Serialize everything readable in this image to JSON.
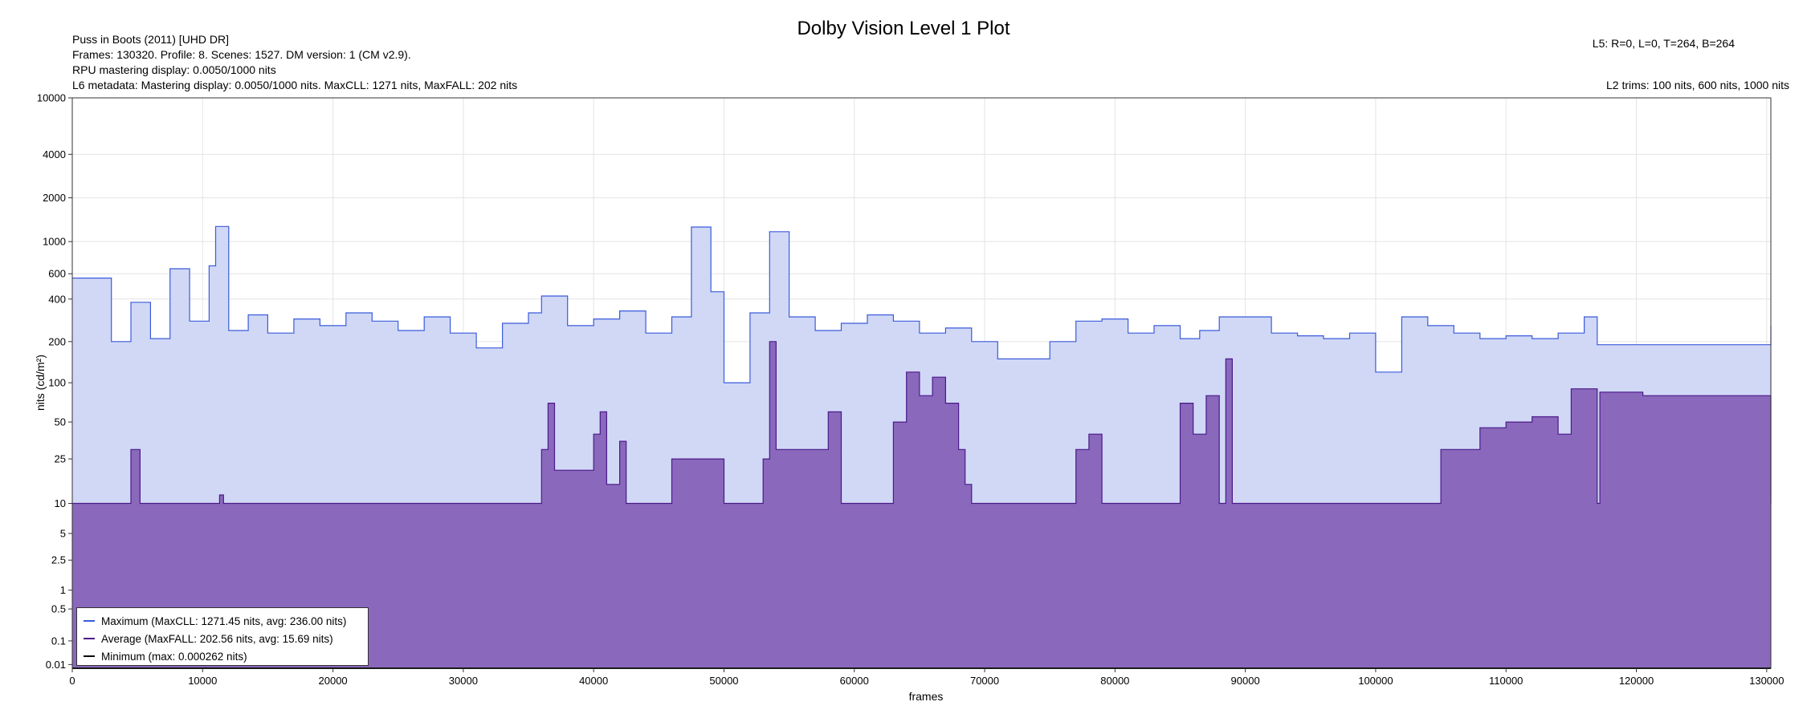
{
  "title": "Dolby Vision Level 1 Plot",
  "info_left": [
    "Puss in Boots (2011) [UHD DR]",
    "Frames: 130320. Profile: 8. Scenes: 1527. DM version: 1 (CM v2.9).",
    "RPU mastering display: 0.0050/1000 nits",
    "L6 metadata: Mastering display: 0.0050/1000 nits. MaxCLL: 1271 nits, MaxFALL: 202 nits"
  ],
  "info_right_top": "L5: R=0, L=0, T=264, B=264",
  "info_right_bottom": "L2 trims: 100 nits, 600 nits, 1000 nits",
  "colors": {
    "max_line": "#3b5bdb",
    "max_fill": "#d0d8f6",
    "avg_line": "#4b1a8a",
    "avg_fill": "#8a68bb",
    "min_line": "#000000",
    "grid": "#e4e4e4"
  },
  "chart_data": {
    "type": "area",
    "title": "Dolby Vision Level 1 Plot",
    "xlabel": "frames",
    "ylabel": "nits (cd/m²)",
    "xlim": [
      0,
      130320
    ],
    "ylim": [
      0.005,
      10000
    ],
    "y_scale": "pq",
    "x_ticks": [
      0,
      10000,
      20000,
      30000,
      40000,
      50000,
      60000,
      70000,
      80000,
      90000,
      100000,
      110000,
      120000,
      130000
    ],
    "y_ticks": [
      0.01,
      0.1,
      0.5,
      1,
      2.5,
      5,
      10,
      25,
      50,
      100,
      200,
      400,
      600,
      1000,
      2000,
      4000,
      10000
    ],
    "grid": true,
    "legend_position": "bottom-left",
    "series": [
      {
        "name": "Maximum (MaxCLL: 1271.45 nits, avg: 236.00 nits)",
        "x": [
          0,
          1500,
          3000,
          4500,
          6000,
          7500,
          9000,
          10500,
          11000,
          12000,
          13500,
          15000,
          17000,
          19000,
          21000,
          23000,
          25000,
          27000,
          29000,
          31000,
          33000,
          35000,
          36000,
          38000,
          40000,
          42000,
          44000,
          46000,
          47500,
          49000,
          50000,
          52000,
          53500,
          55000,
          57000,
          59000,
          61000,
          63000,
          65000,
          67000,
          69000,
          71000,
          73000,
          75000,
          77000,
          79000,
          81000,
          83000,
          85000,
          86500,
          88000,
          90000,
          92000,
          94000,
          96000,
          98000,
          100000,
          102000,
          104000,
          106000,
          108000,
          110000,
          112000,
          114000,
          116000,
          117000,
          118000,
          121000,
          125000,
          130000,
          130320
        ],
        "values": [
          560,
          560,
          200,
          380,
          210,
          650,
          280,
          680,
          1270,
          240,
          310,
          230,
          290,
          260,
          320,
          280,
          240,
          300,
          230,
          180,
          270,
          320,
          420,
          260,
          290,
          330,
          230,
          300,
          1260,
          450,
          100,
          320,
          1170,
          300,
          240,
          270,
          310,
          280,
          230,
          250,
          200,
          150,
          150,
          200,
          280,
          290,
          230,
          260,
          210,
          240,
          300,
          300,
          230,
          220,
          210,
          230,
          120,
          300,
          260,
          230,
          210,
          220,
          210,
          230,
          300,
          190,
          190,
          190,
          190,
          190,
          260
        ]
      },
      {
        "name": "Average (MaxFALL: 202.56 nits, avg: 15.69 nits)",
        "x": [
          0,
          4300,
          4500,
          5000,
          5200,
          11000,
          11300,
          11600,
          22000,
          32000,
          36000,
          36500,
          37000,
          40000,
          40500,
          41000,
          42000,
          42500,
          46000,
          50000,
          53000,
          53500,
          54000,
          58000,
          59000,
          63000,
          64000,
          65000,
          66000,
          67000,
          68000,
          68500,
          69000,
          76000,
          77000,
          78000,
          79000,
          84000,
          85000,
          86000,
          87000,
          88000,
          88500,
          89000,
          100000,
          105000,
          108000,
          110000,
          112000,
          114000,
          115000,
          117000,
          117200,
          120000,
          120500,
          130000,
          130320
        ],
        "values": [
          10,
          10,
          30,
          30,
          10,
          10,
          12,
          10,
          10,
          10,
          30,
          70,
          20,
          40,
          60,
          15,
          35,
          10,
          25,
          10,
          25,
          200,
          30,
          60,
          10,
          50,
          120,
          80,
          110,
          70,
          30,
          15,
          10,
          10,
          30,
          40,
          10,
          10,
          70,
          40,
          80,
          10,
          150,
          10,
          10,
          30,
          45,
          50,
          55,
          40,
          90,
          10,
          85,
          85,
          80,
          80,
          10
        ]
      },
      {
        "name": "Minimum (max: 0.000262 nits)",
        "x": [
          0,
          130320
        ],
        "values": [
          0.005,
          0.005
        ]
      }
    ]
  }
}
